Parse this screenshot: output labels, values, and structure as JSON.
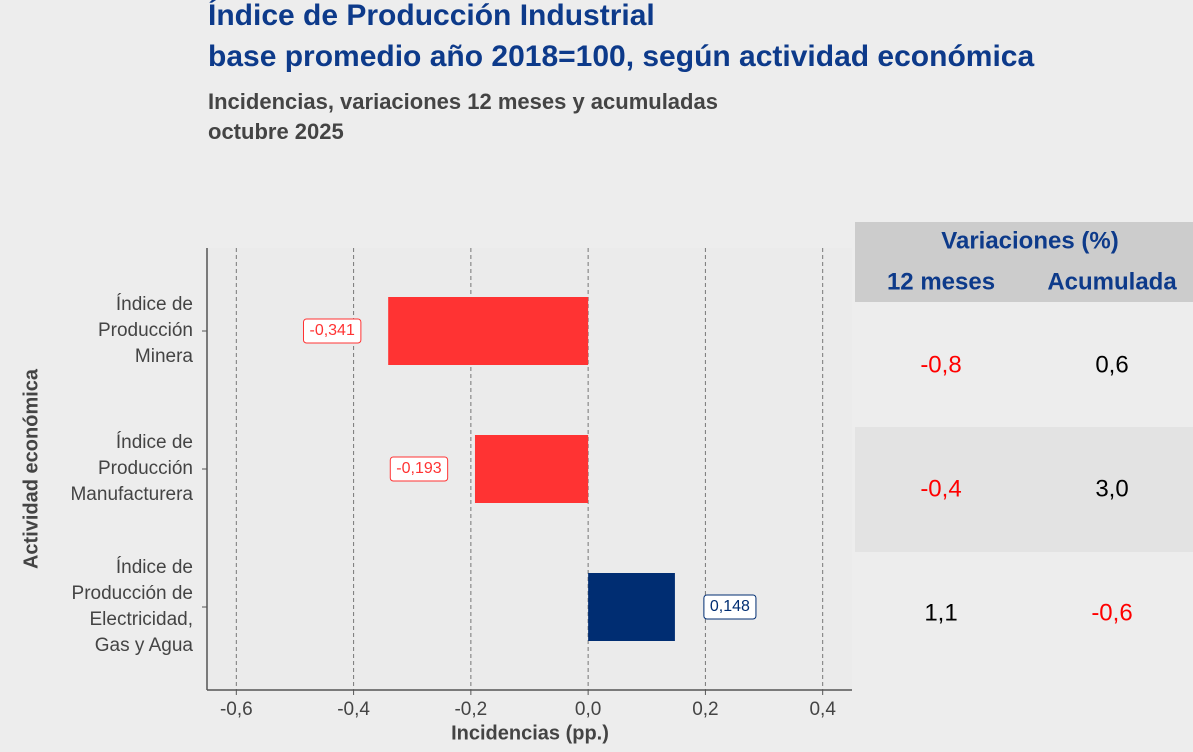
{
  "chart_data": {
    "type": "bar",
    "orientation": "horizontal",
    "title": [
      "Índice de Producción Industrial",
      "base promedio año 2018=100, según actividad económica"
    ],
    "subtitle": [
      "Incidencias, variaciones 12 meses y acumuladas",
      "octubre 2025"
    ],
    "x_label": "Incidencias (pp.)",
    "y_label": "Actividad económica",
    "categories": [
      "Índice de\nProducción\nMinera",
      "Índice de\nProducción\nManufacturera",
      "Índice de\nProducción de\nElectricidad,\nGas y Agua"
    ],
    "values": [
      -0.341,
      -0.193,
      0.148
    ],
    "value_labels": [
      "-0,341",
      "-0,193",
      "0,148"
    ],
    "colors": [
      "#ff3333",
      "#ff3333",
      "#002d72"
    ],
    "xlim": [
      -0.65,
      0.45
    ],
    "xticks": [
      {
        "value": -0.6,
        "label": "-0,6"
      },
      {
        "value": -0.4,
        "label": "-0,4"
      },
      {
        "value": -0.2,
        "label": "-0,2"
      },
      {
        "value": 0,
        "label": "0,0"
      },
      {
        "value": 0.2,
        "label": "0,2"
      },
      {
        "value": 0.4,
        "label": "0,4"
      }
    ],
    "grid": true
  },
  "table": {
    "title": "Variaciones (%)",
    "columns": [
      "12 meses",
      "Acumulada"
    ],
    "rows": [
      [
        "-0,8",
        "0,6"
      ],
      [
        "-0,4",
        "3,0"
      ],
      [
        "1,1",
        "-0,6"
      ]
    ],
    "negative_color": "#ff0000",
    "positive_color": "#000000"
  }
}
